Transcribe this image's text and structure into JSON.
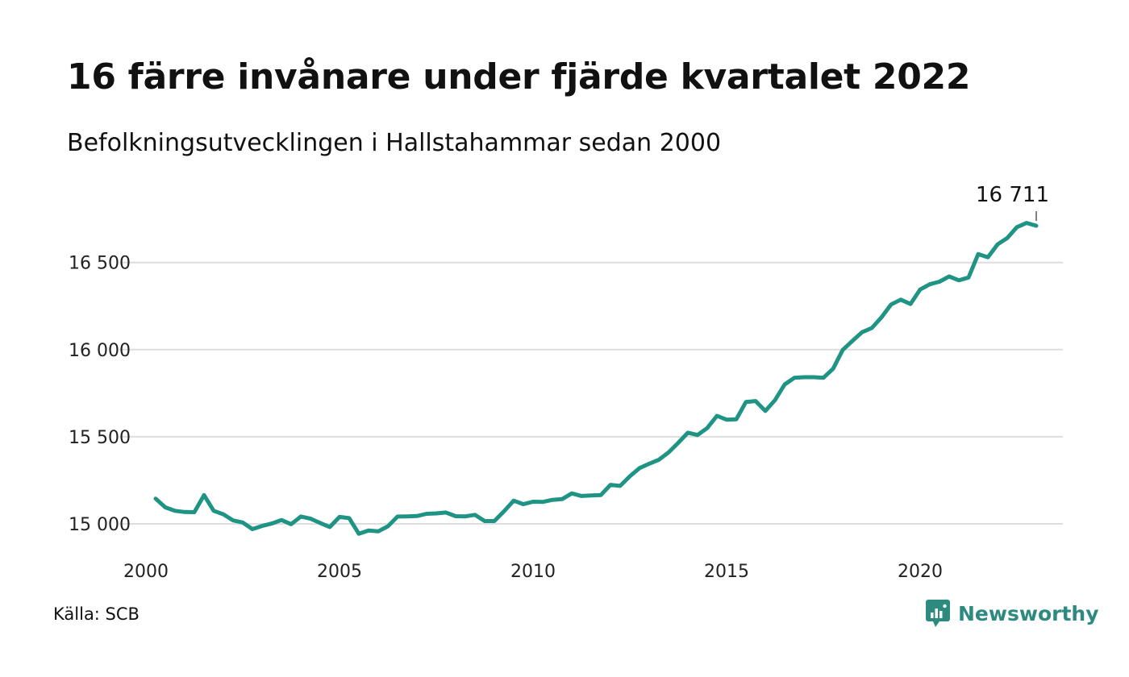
{
  "title": "16 färre invånare under fjärde kvartalet 2022",
  "subtitle": "Befolkningsutvecklingen i Hallstahammar sedan 2000",
  "source": "Källa: SCB",
  "brand": {
    "name": "Newsworthy",
    "color": "#2d8a7f"
  },
  "chart_data": {
    "type": "line",
    "title": "16 färre invånare under fjärde kvartalet 2022",
    "subtitle": "Befolkningsutvecklingen i Hallstahammar sedan 2000",
    "xlabel": "",
    "ylabel": "",
    "xlim": [
      2000,
      2023.5
    ],
    "ylim": [
      14900,
      16800
    ],
    "x_ticks": [
      {
        "value": 2000,
        "label": "2000"
      },
      {
        "value": 2005,
        "label": "2005"
      },
      {
        "value": 2010,
        "label": "2010"
      },
      {
        "value": 2015,
        "label": "2015"
      },
      {
        "value": 2020,
        "label": "2020"
      }
    ],
    "y_ticks": [
      {
        "value": 15000,
        "label": "15 000"
      },
      {
        "value": 15500,
        "label": "15 500"
      },
      {
        "value": 16000,
        "label": "16 000"
      },
      {
        "value": 16500,
        "label": "16 500"
      }
    ],
    "grid": "horizontal",
    "line_color": "#1f9484",
    "end_label": "16 711",
    "series": [
      {
        "x": [
          2000.25,
          2000.5,
          2000.75,
          2001,
          2001.25,
          2001.5,
          2001.75,
          2002,
          2002.25,
          2002.5,
          2002.75,
          2003,
          2003.25,
          2003.5,
          2003.75,
          2004,
          2004.25,
          2004.5,
          2004.75,
          2005,
          2005.25,
          2005.5,
          2005.75,
          2006,
          2006.25,
          2006.5,
          2006.75,
          2007,
          2007.25,
          2007.5,
          2007.75,
          2008,
          2008.25,
          2008.5,
          2008.75,
          2009,
          2009.25,
          2009.5,
          2009.75,
          2010,
          2010.25,
          2010.5,
          2010.75,
          2011,
          2011.25,
          2011.5,
          2011.75,
          2012,
          2012.25,
          2012.5,
          2012.75,
          2013,
          2013.25,
          2013.5,
          2013.75,
          2014,
          2014.25,
          2014.5,
          2014.75,
          2015,
          2015.25,
          2015.5,
          2015.75,
          2016,
          2016.25,
          2016.5,
          2016.75,
          2017,
          2017.25,
          2017.5,
          2017.75,
          2018,
          2018.25,
          2018.5,
          2018.75,
          2019,
          2019.25,
          2019.5,
          2019.75,
          2020,
          2020.25,
          2020.5,
          2020.75,
          2021,
          2021.25,
          2021.5,
          2021.75,
          2022,
          2022.25,
          2022.5,
          2022.75,
          2023
        ],
        "values": [
          15145,
          15095,
          15075,
          15068,
          15067,
          15165,
          15075,
          15055,
          15020,
          15008,
          14970,
          14988,
          15002,
          15022,
          14998,
          15042,
          15030,
          15005,
          14982,
          15040,
          15033,
          14943,
          14962,
          14957,
          14986,
          15042,
          15043,
          15045,
          15058,
          15060,
          15065,
          15044,
          15043,
          15052,
          15016,
          15016,
          15072,
          15133,
          15113,
          15127,
          15126,
          15138,
          15142,
          15175,
          15160,
          15163,
          15165,
          15224,
          15218,
          15273,
          15320,
          15345,
          15368,
          15410,
          15465,
          15523,
          15510,
          15550,
          15620,
          15598,
          15600,
          15700,
          15705,
          15648,
          15710,
          15800,
          15838,
          15842,
          15842,
          15838,
          15890,
          15998,
          16050,
          16100,
          16124,
          16185,
          16259,
          16287,
          16262,
          16345,
          16375,
          16390,
          16420,
          16398,
          16414,
          16548,
          16530,
          16604,
          16640,
          16703,
          16727,
          16711
        ]
      }
    ]
  }
}
